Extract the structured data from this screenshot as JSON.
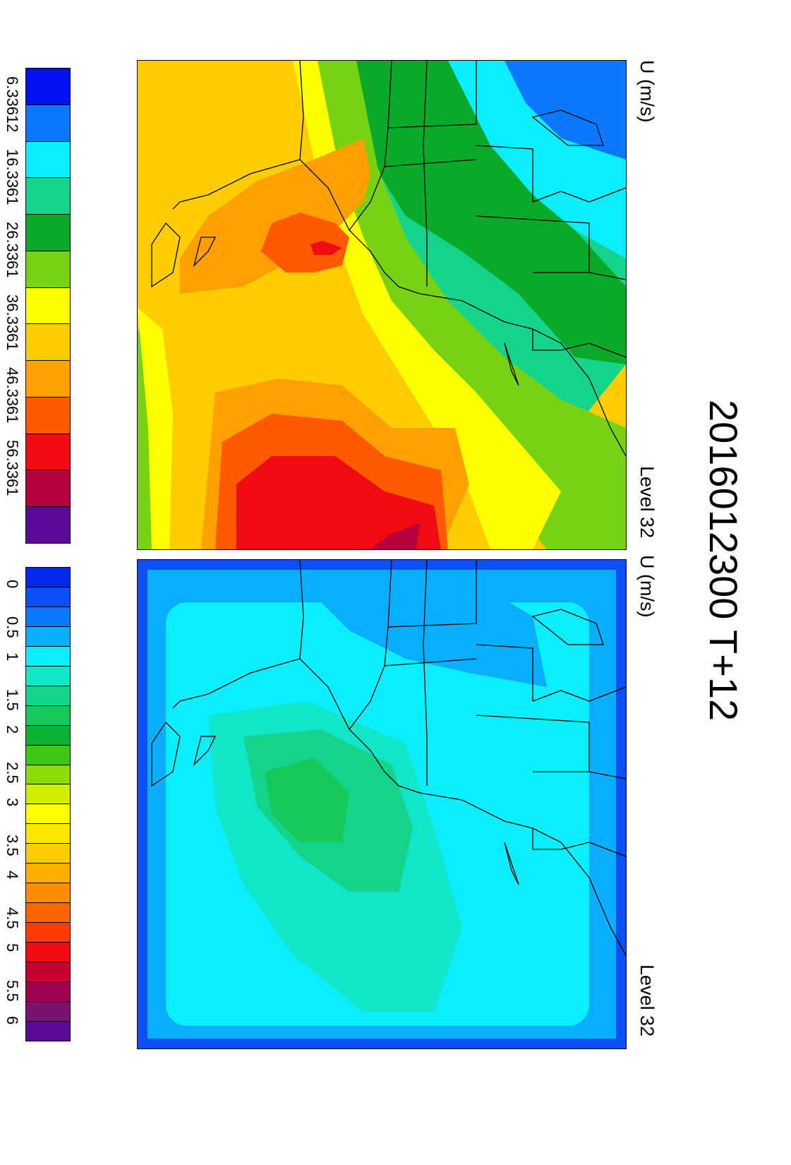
{
  "title": "2016012300 T+12",
  "panels": [
    {
      "id": "top",
      "label_left": "U (m/s)",
      "label_right": "Level 32",
      "base_color": "#FFCC00",
      "colorbar": {
        "labels": [
          "6.33612",
          "16.3361",
          "26.3361",
          "36.3361",
          "46.3361",
          "56.3361"
        ],
        "colors": [
          "#0010F0",
          "#0A78FF",
          "#0AEEFF",
          "#14D48C",
          "#0AAA28",
          "#78D214",
          "#FFFF00",
          "#FFCC00",
          "#FF9F00",
          "#FF5A00",
          "#F00A14",
          "#B4003C",
          "#5A0A96"
        ]
      }
    },
    {
      "id": "bottom",
      "label_left": "U (m/s)",
      "label_right": "Level 32",
      "base_color": "#12D8EE",
      "colorbar": {
        "labels": [
          "0",
          "0.5",
          "1",
          "1.5",
          "2",
          "2.5",
          "3",
          "3.5",
          "4",
          "4.5",
          "5",
          "5.5",
          "6"
        ],
        "colors": [
          "#0028EE",
          "#0A50F5",
          "#0A78FF",
          "#0AAEFF",
          "#0AEEFF",
          "#12E6C8",
          "#14D48C",
          "#14C85A",
          "#0AB432",
          "#3CC814",
          "#8CDC0A",
          "#D2EE00",
          "#FFFF00",
          "#FFE600",
          "#FFCC00",
          "#FFAF00",
          "#FF8C00",
          "#FF6400",
          "#FF3C00",
          "#F00A14",
          "#C80032",
          "#A00050",
          "#78146E",
          "#5A0A96"
        ]
      }
    }
  ]
}
